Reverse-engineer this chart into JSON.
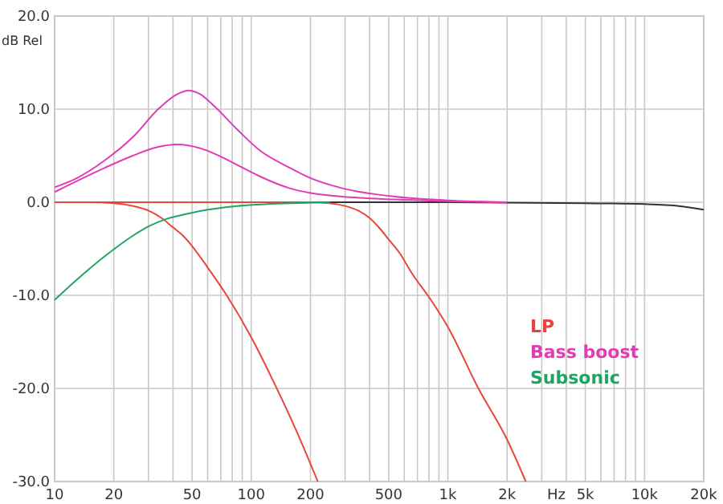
{
  "chart_data": {
    "type": "line",
    "xlabel": "Hz",
    "ylabel": "dB Rel",
    "log": "x",
    "grid": true,
    "legend": "right",
    "marker": "none",
    "line_style": "solid",
    "xlim": [
      10,
      20000
    ],
    "ylim": [
      -30,
      20
    ],
    "xticks": [
      10,
      20,
      {
        "value": 30,
        "label": null
      },
      {
        "value": 40,
        "label": null
      },
      50,
      {
        "value": 60,
        "label": null
      },
      {
        "value": 70,
        "label": null
      },
      {
        "value": 80,
        "label": null
      },
      {
        "value": 90,
        "label": null
      },
      100,
      200,
      {
        "value": 300,
        "label": null
      },
      {
        "value": 400,
        "label": null
      },
      500,
      {
        "value": 600,
        "label": null
      },
      {
        "value": 700,
        "label": null
      },
      {
        "value": 800,
        "label": null
      },
      {
        "value": 900,
        "label": null
      },
      {
        "value": 1000,
        "label": "1k"
      },
      {
        "value": 2000,
        "label": "2k"
      },
      {
        "value": 3000,
        "label": null
      },
      {
        "value": 4000,
        "label": null
      },
      {
        "value": 5000,
        "label": "5k"
      },
      {
        "value": 6000,
        "label": null
      },
      {
        "value": 7000,
        "label": null
      },
      {
        "value": 8000,
        "label": null
      },
      {
        "value": 9000,
        "label": null
      },
      {
        "value": 10000,
        "label": "10k"
      },
      {
        "value": 20000,
        "label": "20k"
      }
    ],
    "yticks": [
      {
        "value": 20,
        "label": "20.0"
      },
      {
        "value": 10,
        "label": "10.0"
      },
      {
        "value": 0,
        "label": "0.0"
      },
      {
        "value": -10,
        "label": "-10.0"
      },
      {
        "value": -20,
        "label": "-20.0"
      },
      {
        "value": -30,
        "label": "-30.0"
      }
    ],
    "series": [
      {
        "color": "#333333",
        "x": [
          10,
          1000,
          5000,
          10000,
          15000,
          20000
        ],
        "values": [
          0,
          0,
          -0.1,
          -0.2,
          -0.4,
          -0.8
        ]
      },
      {
        "name": "LP",
        "color": "#e8453c",
        "x": [
          10,
          15,
          20,
          25,
          30,
          35,
          40,
          45,
          50,
          60,
          75,
          100,
          130,
          170,
          218
        ],
        "values": [
          0,
          0,
          -0.1,
          -0.4,
          -0.9,
          -1.7,
          -2.7,
          -3.6,
          -4.7,
          -7,
          -10,
          -14.5,
          -19.3,
          -24.6,
          -30
        ]
      },
      {
        "color": "#e8453c",
        "x": [
          10,
          200,
          250,
          300,
          350,
          400,
          450,
          500,
          570,
          650,
          820,
          1000,
          1430,
          2000,
          2490
        ],
        "values": [
          0,
          0,
          -0.1,
          -0.4,
          -0.9,
          -1.7,
          -2.8,
          -4,
          -5.5,
          -7.5,
          -10.5,
          -13.4,
          -20,
          -25.5,
          -30
        ]
      },
      {
        "name": "Bass boost",
        "color": "#e03cb4",
        "x": [
          10,
          13,
          18,
          25,
          34,
          42,
          48,
          55,
          65,
          85,
          110,
          157,
          200,
          291,
          538,
          1000,
          2000
        ],
        "values": [
          1.6,
          2.6,
          4.5,
          7,
          10.1,
          11.6,
          12,
          11.6,
          10.3,
          7.8,
          5.6,
          3.7,
          2.6,
          1.5,
          0.6,
          0.2,
          0
        ]
      },
      {
        "color": "#e03cb4",
        "x": [
          10,
          18,
          25,
          33,
          42,
          55,
          70,
          85,
          110,
          157,
          200,
          291,
          538,
          1000,
          2000
        ],
        "values": [
          1.1,
          3.7,
          5,
          5.9,
          6.2,
          5.8,
          4.9,
          4,
          2.8,
          1.5,
          1,
          0.6,
          0.3,
          0.1,
          0
        ]
      },
      {
        "name": "Subsonic",
        "color": "#1fa463",
        "x": [
          10,
          13,
          18,
          25,
          30,
          37,
          46,
          60,
          85,
          120,
          160,
          250
        ],
        "values": [
          -10.5,
          -8.3,
          -5.8,
          -3.6,
          -2.6,
          -1.8,
          -1.3,
          -0.8,
          -0.4,
          -0.2,
          -0.1,
          0
        ]
      }
    ]
  }
}
